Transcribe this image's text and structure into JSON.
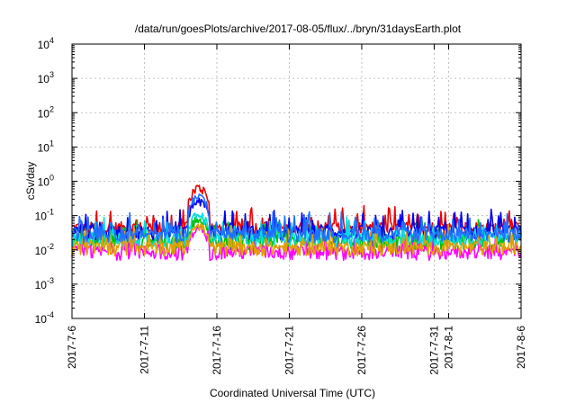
{
  "chart_data": {
    "type": "line",
    "title": "/data/run/goesPlots/archive/2017-08-05/flux/../bryn/31daysEarth.plot",
    "xlabel": "Coordinated Universal Time (UTC)",
    "ylabel": "cSv/day",
    "yscale": "log",
    "ylim": [
      0.0001,
      10000
    ],
    "xlim": [
      "2017-07-06",
      "2017-08-06"
    ],
    "grid": true,
    "x_ticks": [
      "2017-7-6",
      "2017-7-11",
      "2017-7-16",
      "2017-7-21",
      "2017-7-26",
      "2017-7-31",
      "2017-8-1",
      "2017-8-6"
    ],
    "y_ticks": [
      {
        "base": "10",
        "exp": "-4"
      },
      {
        "base": "10",
        "exp": "-3"
      },
      {
        "base": "10",
        "exp": "-2"
      },
      {
        "base": "10",
        "exp": "-1"
      },
      {
        "base": "10",
        "exp": "0"
      },
      {
        "base": "10",
        "exp": "1"
      },
      {
        "base": "10",
        "exp": "2"
      },
      {
        "base": "10",
        "exp": "3"
      },
      {
        "base": "10",
        "exp": "4"
      }
    ],
    "series": [
      {
        "color": "#ee0000",
        "base": 0.045,
        "spike": 0.75
      },
      {
        "color": "#00c000",
        "base": 0.018,
        "spike": 0.09
      },
      {
        "color": "#0000ee",
        "base": 0.035,
        "spike": 0.3
      },
      {
        "color": "#ff00ff",
        "base": 0.009,
        "spike": 0.05
      },
      {
        "color": "#00dddd",
        "base": 0.022,
        "spike": 0.12
      },
      {
        "color": "#e0a000",
        "base": 0.012,
        "spike": 0.06
      },
      {
        "color": "#2070ff",
        "base": 0.03,
        "spike": 0.4
      }
    ],
    "spike_window": [
      "2017-07-14",
      "2017-07-15"
    ]
  }
}
